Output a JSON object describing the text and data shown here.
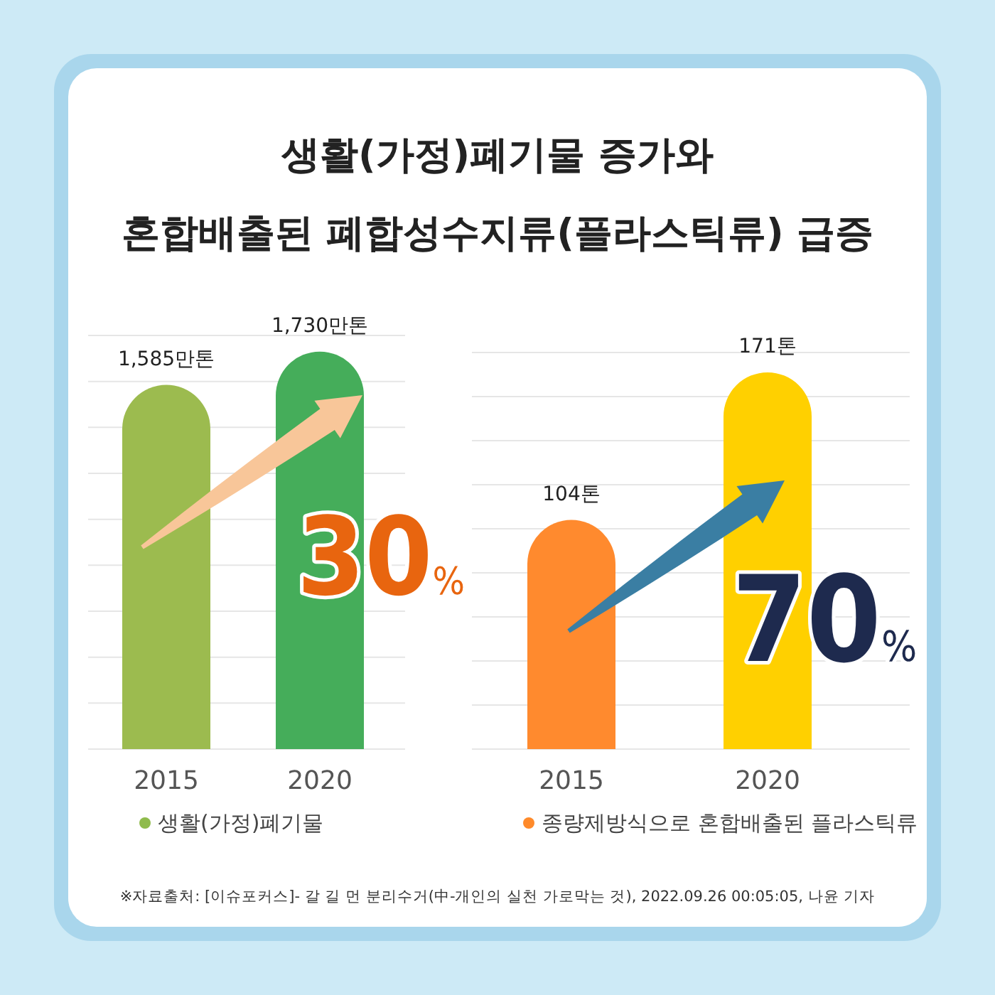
{
  "chart_data": [
    {
      "type": "bar",
      "title": "생활(가정)폐기물 증가와\n혼합배출된 폐합성수지류(플라스틱류) 급증",
      "categories": [
        "2015",
        "2020"
      ],
      "series": [
        {
          "name": "생활(가정)폐기물",
          "color": "#8fbb4c",
          "colors": [
            "#9cbb4f",
            "#45ad5a"
          ],
          "values": [
            1585,
            1730
          ],
          "value_labels": [
            "1,585만톤",
            "1,730만톤"
          ]
        }
      ],
      "ylim": [
        0,
        1800
      ],
      "yticks": [
        {
          "value": 0,
          "label": null
        },
        {
          "value": 200,
          "label": null
        },
        {
          "value": 400,
          "label": null
        },
        {
          "value": 600,
          "label": null
        },
        {
          "value": 800,
          "label": null
        },
        {
          "value": 1000,
          "label": null
        },
        {
          "value": 1200,
          "label": null
        },
        {
          "value": 1400,
          "label": null
        },
        {
          "value": 1600,
          "label": null
        },
        {
          "value": 1800,
          "label": null
        }
      ],
      "grid": "y",
      "tick_labels": "x",
      "legend": "bottom",
      "annotations": [
        "30%"
      ]
    },
    {
      "type": "bar",
      "categories": [
        "2015",
        "2020"
      ],
      "series": [
        {
          "name": "종량제방식으로 혼합배출된 플라스틱류",
          "color": "#ff8a2a",
          "colors": [
            "#ff8a2e",
            "#ffd000"
          ],
          "values": [
            104,
            171
          ],
          "value_labels": [
            "104톤",
            "171톤"
          ]
        }
      ],
      "ylim": [
        0,
        180
      ],
      "yticks": [
        {
          "value": 0,
          "label": null
        },
        {
          "value": 20,
          "label": null
        },
        {
          "value": 40,
          "label": null
        },
        {
          "value": 60,
          "label": null
        },
        {
          "value": 80,
          "label": null
        },
        {
          "value": 100,
          "label": null
        },
        {
          "value": 120,
          "label": null
        },
        {
          "value": 140,
          "label": null
        },
        {
          "value": 160,
          "label": null
        },
        {
          "value": 180,
          "label": null
        }
      ],
      "grid": "y",
      "tick_labels": "x",
      "legend": "bottom",
      "annotations": [
        "70%",
        "※자료출처: [이슈포커스]- 갈 길 먼 분리수거(中-개인의 실천 가로막는 것), 2022.09.26 00:05:05, 나윤 기자"
      ]
    }
  ]
}
